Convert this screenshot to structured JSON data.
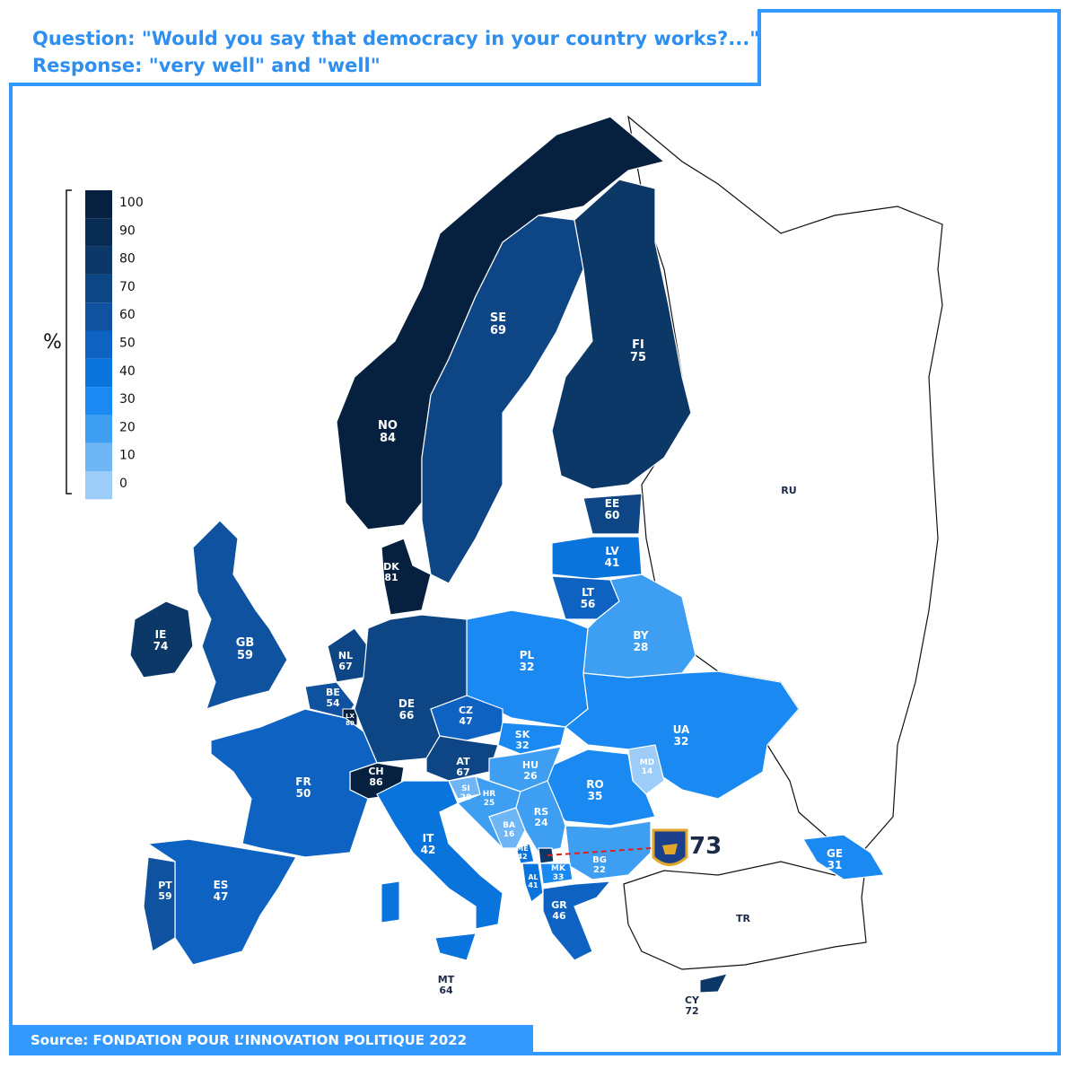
{
  "header": {
    "question": "Question: \"Would you say that democracy in your country works?...\"",
    "response": "Response: \"very well\" and \"well\""
  },
  "footer": {
    "source": "Source: FONDATION POUR L’INNOVATION POLITIQUE 2022"
  },
  "legend": {
    "unit": "%",
    "ticks": [
      "100",
      "90",
      "80",
      "70",
      "60",
      "50",
      "40",
      "30",
      "20",
      "10",
      "0"
    ],
    "colors": [
      "#06213f",
      "#082c54",
      "#0c3868",
      "#0e4585",
      "#0f52a0",
      "#0d62c2",
      "#0a74dd",
      "#1a8af2",
      "#3d9ef2",
      "#6fb6f6",
      "#9dccf9"
    ]
  },
  "countries": {
    "NO": {
      "code": "NO",
      "value": "84"
    },
    "SE": {
      "code": "SE",
      "value": "69"
    },
    "FI": {
      "code": "FI",
      "value": "75"
    },
    "EE": {
      "code": "EE",
      "value": "60"
    },
    "LV": {
      "code": "LV",
      "value": "41"
    },
    "LT": {
      "code": "LT",
      "value": "56"
    },
    "BY": {
      "code": "BY",
      "value": "28"
    },
    "PL": {
      "code": "PL",
      "value": "32"
    },
    "UA": {
      "code": "UA",
      "value": "32"
    },
    "MD": {
      "code": "MD",
      "value": "14"
    },
    "RO": {
      "code": "RO",
      "value": "35"
    },
    "BG": {
      "code": "BG",
      "value": "22"
    },
    "GE": {
      "code": "GE",
      "value": "31"
    },
    "DK": {
      "code": "DK",
      "value": "81"
    },
    "IE": {
      "code": "IE",
      "value": "74"
    },
    "GB": {
      "code": "GB",
      "value": "59"
    },
    "NL": {
      "code": "NL",
      "value": "67"
    },
    "BE": {
      "code": "BE",
      "value": "54"
    },
    "LX": {
      "code": "LX",
      "value": "80"
    },
    "DE": {
      "code": "DE",
      "value": "66"
    },
    "CZ": {
      "code": "CZ",
      "value": "47"
    },
    "SK": {
      "code": "SK",
      "value": "32"
    },
    "AT": {
      "code": "AT",
      "value": "67"
    },
    "HU": {
      "code": "HU",
      "value": "26"
    },
    "CH": {
      "code": "CH",
      "value": "86"
    },
    "FR": {
      "code": "FR",
      "value": "50"
    },
    "SI": {
      "code": "SI",
      "value": "28"
    },
    "HR": {
      "code": "HR",
      "value": "25"
    },
    "RS": {
      "code": "RS",
      "value": "24"
    },
    "BA": {
      "code": "BA",
      "value": "16"
    },
    "ME": {
      "code": "ME",
      "value": "42"
    },
    "AL": {
      "code": "AL",
      "value": "41"
    },
    "MK": {
      "code": "MK",
      "value": "33"
    },
    "GR": {
      "code": "GR",
      "value": "46"
    },
    "IT": {
      "code": "IT",
      "value": "42"
    },
    "PT": {
      "code": "PT",
      "value": "59"
    },
    "ES": {
      "code": "ES",
      "value": "47"
    },
    "MT": {
      "code": "MT",
      "value": "64"
    },
    "CY": {
      "code": "CY",
      "value": "72"
    }
  },
  "other_labels": {
    "RU": "RU",
    "TR": "TR"
  },
  "kosovo": {
    "value": "73"
  }
}
